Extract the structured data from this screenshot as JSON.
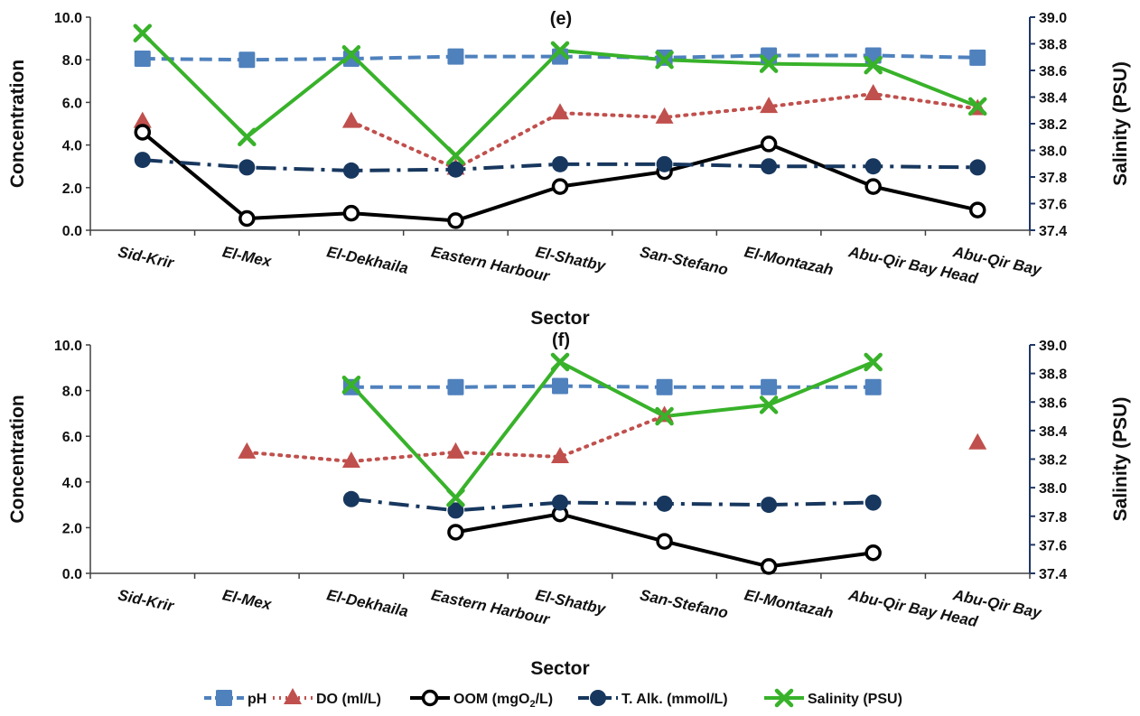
{
  "colors": {
    "pH": "#4f81bd",
    "DO": "#c0504d",
    "OOM": "#000000",
    "T_Alk": "#17375e",
    "Salinity": "#38b22a",
    "axis": "#404040",
    "right_axis": "#1f3864"
  },
  "legend": {
    "items": [
      {
        "key": "pH",
        "label": "pH"
      },
      {
        "key": "DO",
        "label": "DO (ml/L)"
      },
      {
        "key": "OOM",
        "label": "OOM (mgO",
        "sub": "2",
        "after": "/L)"
      },
      {
        "key": "T_Alk",
        "label": "T. Alk. (mmol/L)"
      },
      {
        "key": "Salinity",
        "label": "Salinity (PSU)"
      }
    ]
  },
  "chart_data": [
    {
      "type": "line",
      "title": "(e)",
      "xlabel": "Sector",
      "ylabel": "Concentration",
      "y2label": "Salinity (PSU)",
      "ylim": [
        0,
        10
      ],
      "yticks": [
        "0.0",
        "2.0",
        "4.0",
        "6.0",
        "8.0",
        "10.0"
      ],
      "y2lim": [
        37.4,
        39.0
      ],
      "y2ticks": [
        "37.4",
        "37.6",
        "37.8",
        "38.0",
        "38.2",
        "38.4",
        "38.6",
        "38.8",
        "39.0"
      ],
      "categories": [
        "Sid-Krir",
        "El-Mex",
        "El-Dekhaila",
        "Eastern Harbour",
        "El-Shatby",
        "San-Stefano",
        "El-Montazah",
        "Abu-Qir Bay Head",
        "Abu-Qir Bay"
      ],
      "series": [
        {
          "name": "pH",
          "key": "pH",
          "axis": "left",
          "values": [
            8.05,
            8.0,
            8.05,
            8.15,
            8.15,
            8.1,
            8.2,
            8.2,
            8.1
          ]
        },
        {
          "name": "DO (ml/L)",
          "key": "DO",
          "axis": "left",
          "values": [
            5.1,
            null,
            5.1,
            2.9,
            5.5,
            5.3,
            5.8,
            6.4,
            5.7
          ]
        },
        {
          "name": "OOM (mgO2/L)",
          "key": "OOM",
          "axis": "left",
          "values": [
            4.6,
            0.55,
            0.8,
            0.45,
            2.05,
            2.75,
            4.05,
            2.05,
            0.95
          ]
        },
        {
          "name": "T. Alk. (mmol/L)",
          "key": "T_Alk",
          "axis": "left",
          "values": [
            3.3,
            2.95,
            2.8,
            2.85,
            3.1,
            3.1,
            3.0,
            3.0,
            2.95
          ]
        },
        {
          "name": "Salinity (PSU)",
          "key": "Salinity",
          "axis": "right",
          "values": [
            38.88,
            38.1,
            38.72,
            37.96,
            38.75,
            38.68,
            38.65,
            38.64,
            38.33
          ]
        }
      ]
    },
    {
      "type": "line",
      "title": "(f)",
      "xlabel": "Sector",
      "ylabel": "Concentration",
      "y2label": "Salinity (PSU)",
      "ylim": [
        0,
        10
      ],
      "yticks": [
        "0.0",
        "2.0",
        "4.0",
        "6.0",
        "8.0",
        "10.0"
      ],
      "y2lim": [
        37.4,
        39.0
      ],
      "y2ticks": [
        "37.4",
        "37.6",
        "37.8",
        "38.0",
        "38.2",
        "38.4",
        "38.6",
        "38.8",
        "39.0"
      ],
      "categories": [
        "Sid-Krir",
        "El-Mex",
        "El-Dekhaila",
        "Eastern Harbour",
        "El-Shatby",
        "San-Stefano",
        "El-Montazah",
        "Abu-Qir Bay Head",
        "Abu-Qir Bay"
      ],
      "series": [
        {
          "name": "pH",
          "key": "pH",
          "axis": "left",
          "values": [
            null,
            null,
            8.15,
            8.15,
            8.2,
            8.15,
            8.15,
            8.15,
            null
          ]
        },
        {
          "name": "DO (ml/L)",
          "key": "DO",
          "axis": "left",
          "values": [
            null,
            5.3,
            4.9,
            5.3,
            5.1,
            6.9,
            null,
            null,
            5.7
          ]
        },
        {
          "name": "OOM (mgO2/L)",
          "key": "OOM",
          "axis": "left",
          "values": [
            null,
            null,
            null,
            1.8,
            2.6,
            1.4,
            0.3,
            0.9,
            null
          ]
        },
        {
          "name": "T. Alk. (mmol/L)",
          "key": "T_Alk",
          "axis": "left",
          "values": [
            null,
            null,
            3.25,
            2.75,
            3.1,
            3.05,
            3.0,
            3.1,
            null
          ]
        },
        {
          "name": "Salinity (PSU)",
          "key": "Salinity",
          "axis": "right",
          "values": [
            null,
            null,
            38.72,
            37.93,
            38.88,
            38.5,
            38.58,
            38.88,
            null
          ]
        }
      ]
    }
  ]
}
